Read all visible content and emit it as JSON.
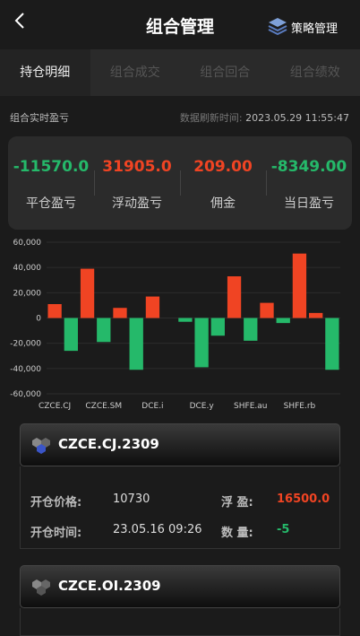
{
  "header": {
    "title": "组合管理",
    "right": "策略管理"
  },
  "tabs": [
    "持仓明细",
    "组合成交",
    "组合回合",
    "组合绩效"
  ],
  "summary": {
    "label": "组合实时盈亏",
    "refresh_label": "数据刷新时间:",
    "refresh_time": "2023.05.29 11:55:47",
    "stats": [
      {
        "value": "-11570.0",
        "label": "平仓盈亏"
      },
      {
        "value": "31905.0",
        "label": "浮动盈亏"
      },
      {
        "value": "209.00",
        "label": "佣金"
      },
      {
        "value": "-8349.00",
        "label": "当日盈亏"
      }
    ]
  },
  "chart_data": {
    "type": "bar",
    "categories": [
      "CZCE.CJ",
      null,
      null,
      "CZCE.SM",
      null,
      null,
      "DCE.i",
      null,
      null,
      "DCE.y",
      null,
      null,
      "SHFE.au",
      null,
      null,
      "SHFE.rb",
      null,
      null
    ],
    "values": [
      11000,
      -26000,
      39000,
      -19000,
      8000,
      -41000,
      17000,
      0,
      -3000,
      -39000,
      -14000,
      33000,
      -18000,
      12000,
      -4000,
      51000,
      4000,
      -41000
    ],
    "positive_color": "#f04423",
    "negative_color": "#25b96a",
    "ylim": [
      -60000,
      60000
    ],
    "yticks": [
      {
        "value": -60000,
        "label": "-60,000"
      },
      {
        "value": -40000,
        "label": "-40,000"
      },
      {
        "value": -20000,
        "label": "-20,000"
      },
      0,
      {
        "value": 20000,
        "label": "20,000"
      },
      {
        "value": 40000,
        "label": "40,000"
      },
      {
        "value": 60000,
        "label": "60,000"
      }
    ],
    "grid": true
  },
  "positions": [
    {
      "code": "CZCE.CJ.2309",
      "fields": [
        {
          "label": "开仓价格:",
          "value": "10730"
        },
        {
          "label": "浮 盈:",
          "value": "16500.0"
        },
        {
          "label": "开仓时间:",
          "value": "23.05.16 09:26"
        },
        {
          "label": "数 量:",
          "value": "-5"
        }
      ]
    },
    {
      "code": "CZCE.OI.2309"
    }
  ]
}
